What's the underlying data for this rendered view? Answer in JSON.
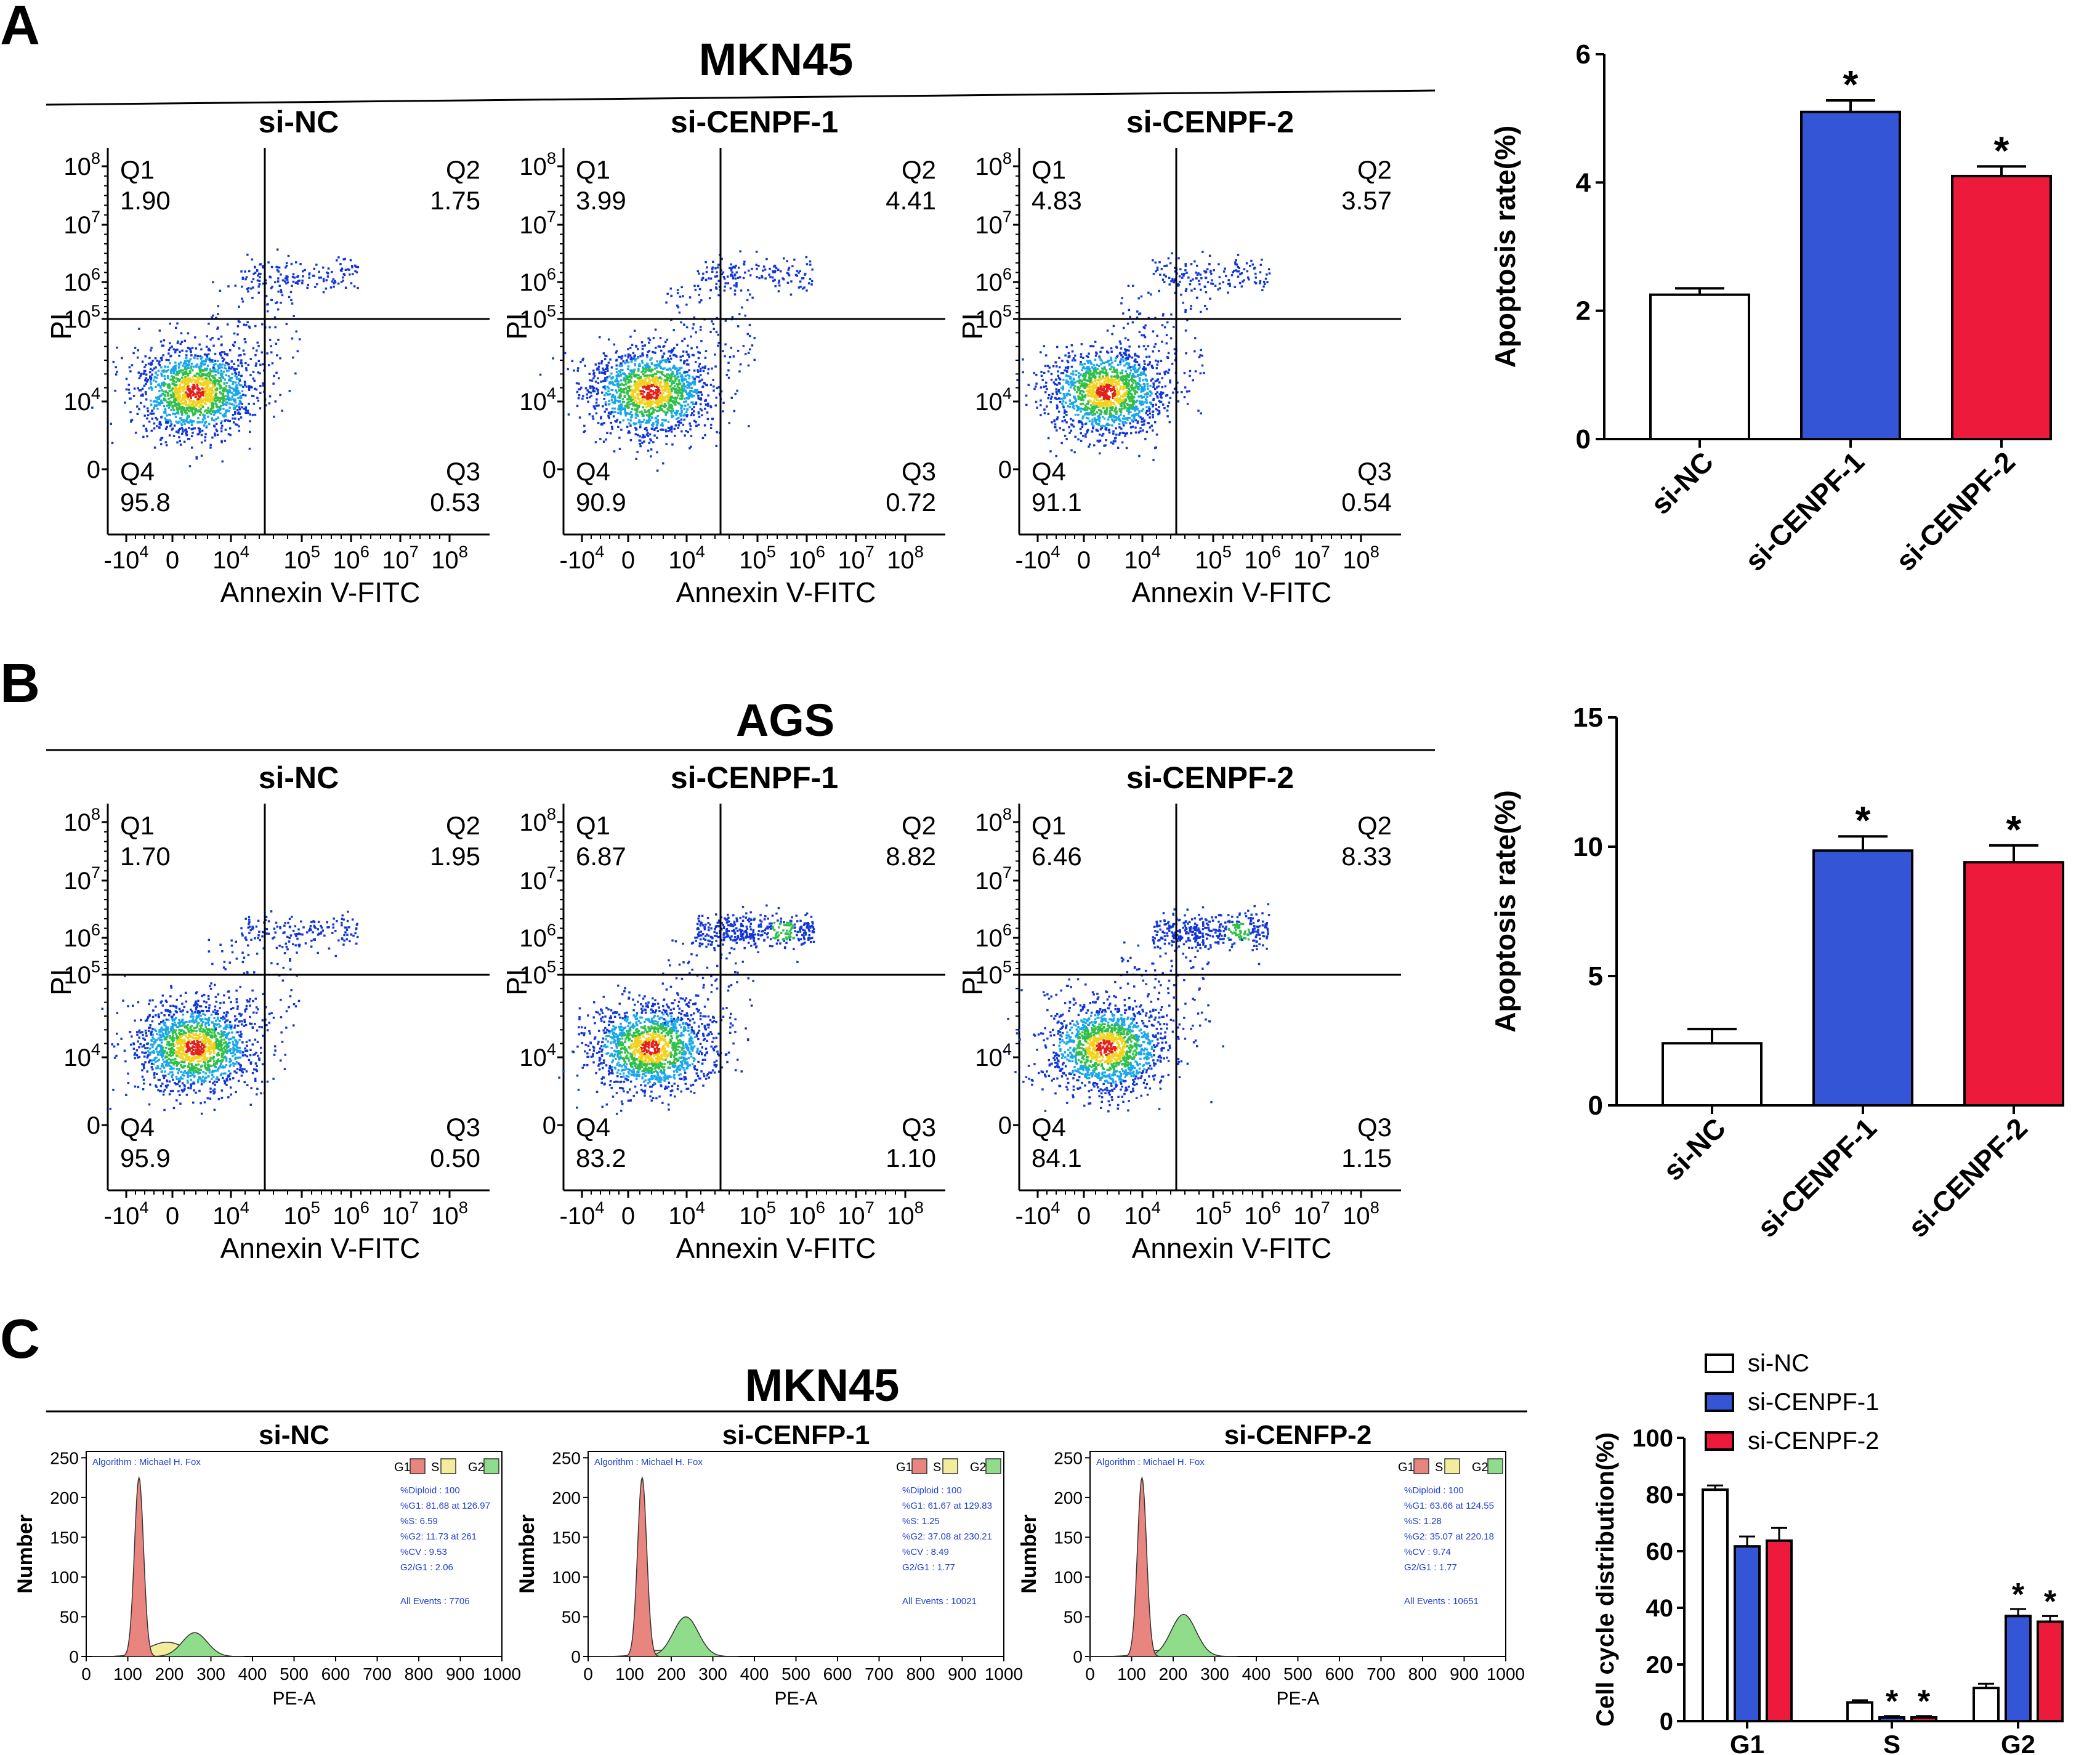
{
  "panels": {
    "A": {
      "letter": "A",
      "title": "MKN45",
      "flow": [
        {
          "name": "si-NC",
          "Q1": "1.90",
          "Q2": "1.75",
          "Q3": "0.53",
          "Q4": "95.8"
        },
        {
          "name": "si-CENPF-1",
          "Q1": "3.99",
          "Q2": "4.41",
          "Q3": "0.72",
          "Q4": "90.9"
        },
        {
          "name": "si-CENPF-2",
          "Q1": "4.83",
          "Q2": "3.57",
          "Q3": "0.54",
          "Q4": "91.1"
        }
      ]
    },
    "B": {
      "letter": "B",
      "title": "AGS",
      "flow": [
        {
          "name": "si-NC",
          "Q1": "1.70",
          "Q2": "1.95",
          "Q3": "0.50",
          "Q4": "95.9"
        },
        {
          "name": "si-CENPF-1",
          "Q1": "6.87",
          "Q2": "8.82",
          "Q3": "1.10",
          "Q4": "83.2"
        },
        {
          "name": "si-CENPF-2",
          "Q1": "6.46",
          "Q2": "8.33",
          "Q3": "1.15",
          "Q4": "84.1"
        }
      ]
    },
    "C": {
      "letter": "C",
      "title": "MKN45",
      "histograms": [
        {
          "name": "si-NC",
          "stats": [
            "%Diploid : 100",
            "%G1: 81.68 at 126.97",
            "%S: 6.59",
            "%G2: 11.73 at 261",
            "%CV : 9.53",
            "G2/G1 : 2.06"
          ],
          "events": "All Events : 7706"
        },
        {
          "name": "si-CENFP-1",
          "stats": [
            "%Diploid : 100",
            "%G1: 61.67 at 129.83",
            "%S: 1.25",
            "%G2: 37.08 at 230.21",
            "%CV : 8.49",
            "G2/G1 : 1.77"
          ],
          "events": "All Events : 10021"
        },
        {
          "name": "si-CENFP-2",
          "stats": [
            "%Diploid : 100",
            "%G1: 63.66 at 124.55",
            "%S: 1.28",
            "%G2: 35.07 at 220.18",
            "%CV : 9.74",
            "G2/G1 : 1.77"
          ],
          "events": "All Events : 10651"
        }
      ]
    }
  },
  "flow_axes": {
    "y_label": "PI",
    "x_label": "Annexin V-FITC",
    "quadrants": [
      "Q1",
      "Q2",
      "Q3",
      "Q4"
    ],
    "x_ticks": [
      {
        "b": "-10",
        "e": "4"
      },
      {
        "b": "0",
        "e": ""
      },
      {
        "b": "10",
        "e": "4"
      },
      {
        "b": "10",
        "e": "5"
      },
      {
        "b": "10",
        "e": "6"
      },
      {
        "b": "10",
        "e": "7"
      },
      {
        "b": "10",
        "e": "8"
      }
    ],
    "y_ticks": [
      {
        "b": "10",
        "e": "8"
      },
      {
        "b": "10",
        "e": "7"
      },
      {
        "b": "10",
        "e": "6"
      },
      {
        "b": "10",
        "e": "5"
      },
      {
        "b": "10",
        "e": "4"
      },
      {
        "b": "0",
        "e": ""
      }
    ]
  },
  "hist_axes": {
    "y_label": "Number",
    "x_label": "PE-A",
    "algorithm": "Algorithm : Michael H. Fox",
    "legend": [
      "G1",
      "S",
      "G2"
    ],
    "legend_colors": [
      "#e8857e",
      "#f3ec9c",
      "#8fdc8a"
    ],
    "x_ticks": [
      "0",
      "100",
      "200",
      "300",
      "400",
      "500",
      "600",
      "700",
      "800",
      "900",
      "1000"
    ],
    "y_ticks": [
      "0",
      "50",
      "100",
      "150",
      "200",
      "250"
    ]
  },
  "colors": {
    "si-NC": "#ffffff",
    "si-CENPF-1": "#3355d6",
    "si-CENPF-2": "#ee1a3c"
  },
  "chart_data": [
    {
      "type": "bar",
      "categories": [
        "si-NC",
        "si-CENPF-1",
        "si-CENPF-2"
      ],
      "values": [
        2.25,
        5.1,
        4.1
      ],
      "errors": [
        0.1,
        0.18,
        0.15
      ],
      "significance": [
        "",
        "*",
        "*"
      ],
      "ylabel": "Apoptosis rate(%)",
      "xlabel": "",
      "ylim": [
        0,
        6
      ],
      "yticks": [
        "0",
        "2",
        "4",
        "6"
      ]
    },
    {
      "type": "bar",
      "categories": [
        "si-NC",
        "si-CENPF-1",
        "si-CENPF-2"
      ],
      "values": [
        2.4,
        9.85,
        9.4
      ],
      "errors": [
        0.55,
        0.55,
        0.65
      ],
      "significance": [
        "",
        "*",
        "*"
      ],
      "ylabel": "Apoptosis rate(%)",
      "xlabel": "",
      "ylim": [
        0,
        15
      ],
      "yticks": [
        "0",
        "5",
        "10",
        "15"
      ]
    },
    {
      "type": "bar",
      "categories": [
        "G1",
        "S",
        "G2"
      ],
      "series": [
        {
          "name": "si-NC",
          "values": [
            81.7,
            6.6,
            11.7
          ],
          "errors": [
            1.5,
            0.8,
            1.5
          ]
        },
        {
          "name": "si-CENPF-1",
          "values": [
            61.7,
            1.3,
            37.1
          ],
          "errors": [
            3.5,
            0.5,
            2.5
          ]
        },
        {
          "name": "si-CENPF-2",
          "values": [
            63.7,
            1.3,
            35.1
          ],
          "errors": [
            4.5,
            0.5,
            2.0
          ]
        }
      ],
      "significance": [
        [
          "",
          "",
          ""
        ],
        [
          "",
          "*",
          "*"
        ],
        [
          "",
          "*",
          "*"
        ]
      ],
      "ylabel": "Cell cycle distribution(%)",
      "xlabel": "",
      "ylim": [
        0,
        100
      ],
      "yticks": [
        "0",
        "20",
        "40",
        "60",
        "80",
        "100"
      ],
      "legend_position": "top"
    }
  ]
}
